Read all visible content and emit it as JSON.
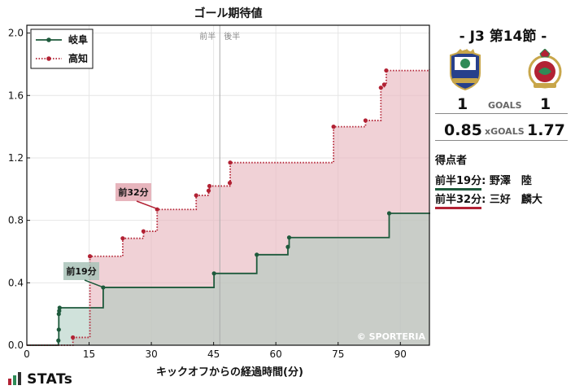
{
  "chart_data": {
    "type": "line",
    "title": "ゴール期待値",
    "xlabel": "キックオフからの経過時間(分)",
    "ylabel": "",
    "xlim": [
      0,
      97
    ],
    "ylim": [
      0,
      2.05
    ],
    "xticks": [
      0,
      15,
      30,
      45,
      60,
      75,
      90
    ],
    "yticks": [
      0.0,
      0.4,
      0.8,
      1.2,
      1.6,
      2.0
    ],
    "half_line_x": 46.5,
    "half_labels": [
      "前半",
      "後半"
    ],
    "watermark": "© SPORTERIA",
    "legend_position": "top-left",
    "series": [
      {
        "name": "岐阜",
        "color": "#1e5a3c",
        "fill": "#a9cbbd",
        "line_style": "solid",
        "steps": [
          [
            7.6,
            0.03
          ],
          [
            7.7,
            0.1
          ],
          [
            7.7,
            0.2
          ],
          [
            7.8,
            0.22
          ],
          [
            7.9,
            0.24
          ],
          [
            18.4,
            0.37
          ],
          [
            45.1,
            0.46
          ],
          [
            55.4,
            0.58
          ],
          [
            62.9,
            0.63
          ],
          [
            63.2,
            0.69
          ],
          [
            87.3,
            0.845
          ],
          [
            97.0,
            0.85
          ]
        ]
      },
      {
        "name": "高知",
        "color": "#b22234",
        "fill": "#e8b8c0",
        "line_style": "dotted",
        "steps": [
          [
            11.1,
            0.05
          ],
          [
            15.2,
            0.57
          ],
          [
            23.1,
            0.685
          ],
          [
            28.1,
            0.73
          ],
          [
            31.4,
            0.87
          ],
          [
            40.8,
            0.96
          ],
          [
            43.8,
            0.99
          ],
          [
            44.0,
            1.02
          ],
          [
            48.9,
            1.04
          ],
          [
            49.0,
            1.17
          ],
          [
            73.9,
            1.4
          ],
          [
            81.6,
            1.44
          ],
          [
            85.3,
            1.65
          ],
          [
            86.1,
            1.67
          ],
          [
            86.6,
            1.76
          ],
          [
            97.0,
            1.765
          ]
        ]
      }
    ],
    "goal_annotations": [
      {
        "label": "前19分",
        "x": 18.5,
        "y": 0.37,
        "team": "岐阜"
      },
      {
        "label": "前32分",
        "x": 31.8,
        "y": 0.87,
        "team": "高知"
      }
    ]
  },
  "match": {
    "title": "- J3 第14節 -",
    "home_team": "岐阜",
    "away_team": "高知",
    "home_goals": "1",
    "away_goals": "1",
    "goals_label": "GOALS",
    "home_xg": "0.85",
    "away_xg": "1.77",
    "xg_label": "xGOALS",
    "scorers_title": "得点者",
    "scorers": [
      {
        "time": "前半19分",
        "name": "野澤　陸",
        "color": "#1e5a3c"
      },
      {
        "time": "前半32分",
        "name": "三好　麟大",
        "color": "#b22234"
      }
    ]
  },
  "branding": {
    "logo_text": "STATs"
  }
}
